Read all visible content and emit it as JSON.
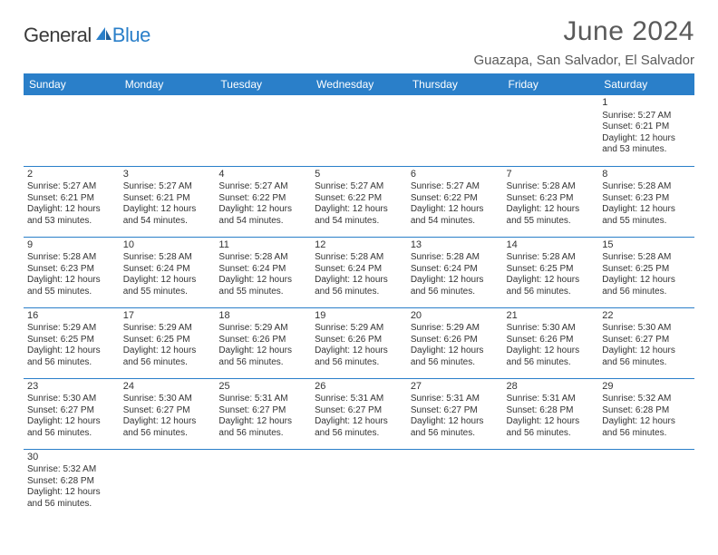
{
  "brand": {
    "textA": "General",
    "textB": "Blue"
  },
  "title": "June 2024",
  "location": "Guazapa, San Salvador, El Salvador",
  "columns": [
    "Sunday",
    "Monday",
    "Tuesday",
    "Wednesday",
    "Thursday",
    "Friday",
    "Saturday"
  ],
  "colors": {
    "header_bg": "#2a7fc9",
    "header_fg": "#ffffff",
    "rule": "#2a7fc9",
    "text": "#333333"
  },
  "weeks": [
    [
      null,
      null,
      null,
      null,
      null,
      null,
      {
        "n": "1",
        "sr": "Sunrise: 5:27 AM",
        "ss": "Sunset: 6:21 PM",
        "dl1": "Daylight: 12 hours",
        "dl2": "and 53 minutes."
      }
    ],
    [
      {
        "n": "2",
        "sr": "Sunrise: 5:27 AM",
        "ss": "Sunset: 6:21 PM",
        "dl1": "Daylight: 12 hours",
        "dl2": "and 53 minutes."
      },
      {
        "n": "3",
        "sr": "Sunrise: 5:27 AM",
        "ss": "Sunset: 6:21 PM",
        "dl1": "Daylight: 12 hours",
        "dl2": "and 54 minutes."
      },
      {
        "n": "4",
        "sr": "Sunrise: 5:27 AM",
        "ss": "Sunset: 6:22 PM",
        "dl1": "Daylight: 12 hours",
        "dl2": "and 54 minutes."
      },
      {
        "n": "5",
        "sr": "Sunrise: 5:27 AM",
        "ss": "Sunset: 6:22 PM",
        "dl1": "Daylight: 12 hours",
        "dl2": "and 54 minutes."
      },
      {
        "n": "6",
        "sr": "Sunrise: 5:27 AM",
        "ss": "Sunset: 6:22 PM",
        "dl1": "Daylight: 12 hours",
        "dl2": "and 54 minutes."
      },
      {
        "n": "7",
        "sr": "Sunrise: 5:28 AM",
        "ss": "Sunset: 6:23 PM",
        "dl1": "Daylight: 12 hours",
        "dl2": "and 55 minutes."
      },
      {
        "n": "8",
        "sr": "Sunrise: 5:28 AM",
        "ss": "Sunset: 6:23 PM",
        "dl1": "Daylight: 12 hours",
        "dl2": "and 55 minutes."
      }
    ],
    [
      {
        "n": "9",
        "sr": "Sunrise: 5:28 AM",
        "ss": "Sunset: 6:23 PM",
        "dl1": "Daylight: 12 hours",
        "dl2": "and 55 minutes."
      },
      {
        "n": "10",
        "sr": "Sunrise: 5:28 AM",
        "ss": "Sunset: 6:24 PM",
        "dl1": "Daylight: 12 hours",
        "dl2": "and 55 minutes."
      },
      {
        "n": "11",
        "sr": "Sunrise: 5:28 AM",
        "ss": "Sunset: 6:24 PM",
        "dl1": "Daylight: 12 hours",
        "dl2": "and 55 minutes."
      },
      {
        "n": "12",
        "sr": "Sunrise: 5:28 AM",
        "ss": "Sunset: 6:24 PM",
        "dl1": "Daylight: 12 hours",
        "dl2": "and 56 minutes."
      },
      {
        "n": "13",
        "sr": "Sunrise: 5:28 AM",
        "ss": "Sunset: 6:24 PM",
        "dl1": "Daylight: 12 hours",
        "dl2": "and 56 minutes."
      },
      {
        "n": "14",
        "sr": "Sunrise: 5:28 AM",
        "ss": "Sunset: 6:25 PM",
        "dl1": "Daylight: 12 hours",
        "dl2": "and 56 minutes."
      },
      {
        "n": "15",
        "sr": "Sunrise: 5:28 AM",
        "ss": "Sunset: 6:25 PM",
        "dl1": "Daylight: 12 hours",
        "dl2": "and 56 minutes."
      }
    ],
    [
      {
        "n": "16",
        "sr": "Sunrise: 5:29 AM",
        "ss": "Sunset: 6:25 PM",
        "dl1": "Daylight: 12 hours",
        "dl2": "and 56 minutes."
      },
      {
        "n": "17",
        "sr": "Sunrise: 5:29 AM",
        "ss": "Sunset: 6:25 PM",
        "dl1": "Daylight: 12 hours",
        "dl2": "and 56 minutes."
      },
      {
        "n": "18",
        "sr": "Sunrise: 5:29 AM",
        "ss": "Sunset: 6:26 PM",
        "dl1": "Daylight: 12 hours",
        "dl2": "and 56 minutes."
      },
      {
        "n": "19",
        "sr": "Sunrise: 5:29 AM",
        "ss": "Sunset: 6:26 PM",
        "dl1": "Daylight: 12 hours",
        "dl2": "and 56 minutes."
      },
      {
        "n": "20",
        "sr": "Sunrise: 5:29 AM",
        "ss": "Sunset: 6:26 PM",
        "dl1": "Daylight: 12 hours",
        "dl2": "and 56 minutes."
      },
      {
        "n": "21",
        "sr": "Sunrise: 5:30 AM",
        "ss": "Sunset: 6:26 PM",
        "dl1": "Daylight: 12 hours",
        "dl2": "and 56 minutes."
      },
      {
        "n": "22",
        "sr": "Sunrise: 5:30 AM",
        "ss": "Sunset: 6:27 PM",
        "dl1": "Daylight: 12 hours",
        "dl2": "and 56 minutes."
      }
    ],
    [
      {
        "n": "23",
        "sr": "Sunrise: 5:30 AM",
        "ss": "Sunset: 6:27 PM",
        "dl1": "Daylight: 12 hours",
        "dl2": "and 56 minutes."
      },
      {
        "n": "24",
        "sr": "Sunrise: 5:30 AM",
        "ss": "Sunset: 6:27 PM",
        "dl1": "Daylight: 12 hours",
        "dl2": "and 56 minutes."
      },
      {
        "n": "25",
        "sr": "Sunrise: 5:31 AM",
        "ss": "Sunset: 6:27 PM",
        "dl1": "Daylight: 12 hours",
        "dl2": "and 56 minutes."
      },
      {
        "n": "26",
        "sr": "Sunrise: 5:31 AM",
        "ss": "Sunset: 6:27 PM",
        "dl1": "Daylight: 12 hours",
        "dl2": "and 56 minutes."
      },
      {
        "n": "27",
        "sr": "Sunrise: 5:31 AM",
        "ss": "Sunset: 6:27 PM",
        "dl1": "Daylight: 12 hours",
        "dl2": "and 56 minutes."
      },
      {
        "n": "28",
        "sr": "Sunrise: 5:31 AM",
        "ss": "Sunset: 6:28 PM",
        "dl1": "Daylight: 12 hours",
        "dl2": "and 56 minutes."
      },
      {
        "n": "29",
        "sr": "Sunrise: 5:32 AM",
        "ss": "Sunset: 6:28 PM",
        "dl1": "Daylight: 12 hours",
        "dl2": "and 56 minutes."
      }
    ],
    [
      {
        "n": "30",
        "sr": "Sunrise: 5:32 AM",
        "ss": "Sunset: 6:28 PM",
        "dl1": "Daylight: 12 hours",
        "dl2": "and 56 minutes."
      },
      null,
      null,
      null,
      null,
      null,
      null
    ]
  ]
}
